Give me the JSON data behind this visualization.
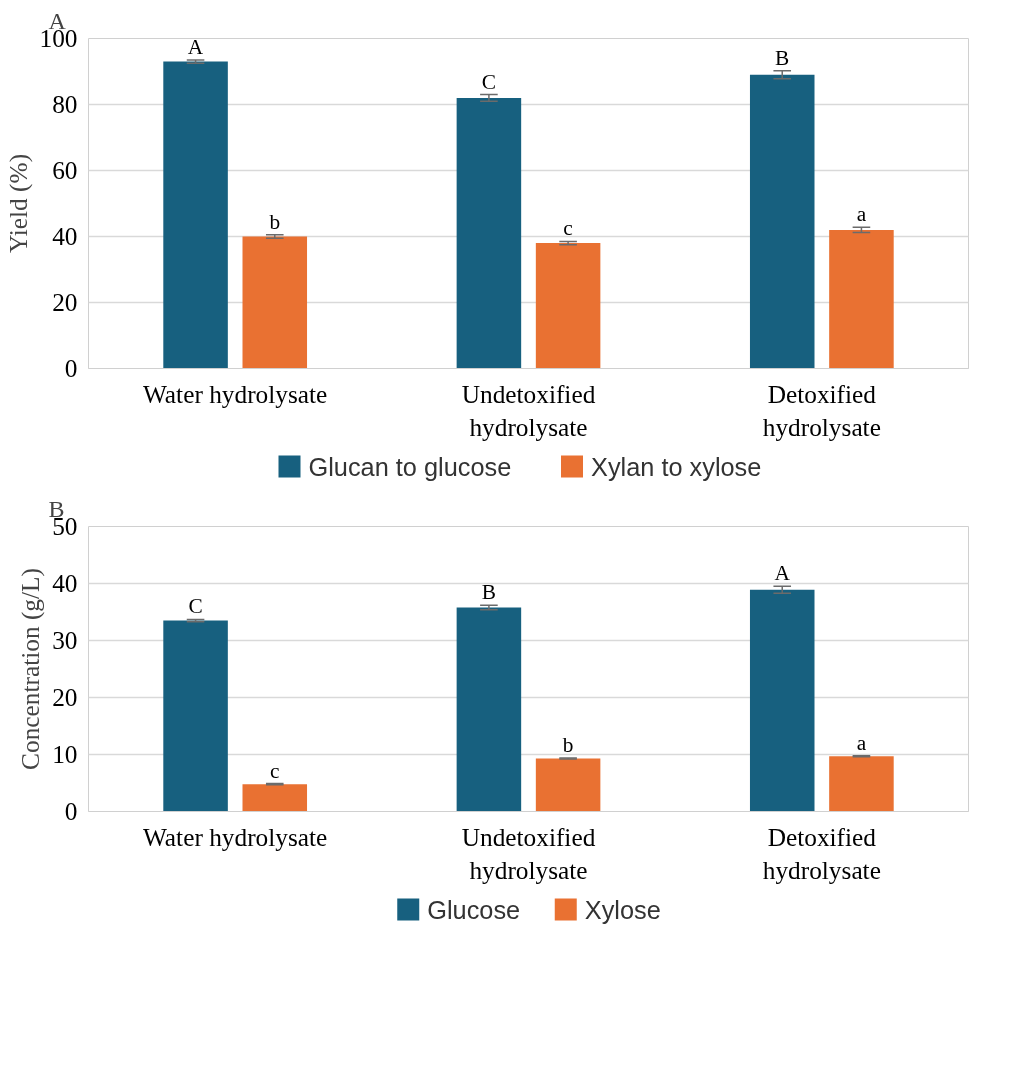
{
  "chart_data": [
    {
      "type": "bar",
      "categories": [
        "Water hydrolysate",
        "Undetoxified hydrolysate",
        "Detoxified hydrolysate"
      ],
      "ylabel": "Yield (%)",
      "ylim": [
        0,
        100
      ],
      "yticks": [
        0,
        20,
        40,
        60,
        80,
        100
      ],
      "grid": "y",
      "legend": "bottom",
      "series": [
        {
          "name": "Glucan to glucose",
          "color": "#17607f",
          "values": [
            93,
            82,
            89
          ],
          "errors": [
            0.5,
            1,
            1.2
          ]
        },
        {
          "name": "Xylan to xylose",
          "color": "#e97132",
          "values": [
            40,
            38,
            42
          ],
          "errors": [
            0.5,
            0.5,
            0.8
          ]
        }
      ],
      "annotations": [
        "A",
        "A",
        "C",
        "B",
        "b",
        "c",
        "a"
      ]
    },
    {
      "type": "bar",
      "categories": [
        "Water hydrolysate",
        "Undetoxified hydrolysate",
        "Detoxified hydrolysate"
      ],
      "ylabel": "Concentration (g/L)",
      "ylim": [
        0,
        50
      ],
      "yticks": [
        0,
        10,
        20,
        30,
        40,
        50
      ],
      "grid": "y",
      "legend": "bottom",
      "series": [
        {
          "name": "Glucose",
          "color": "#17607f",
          "values": [
            33.5,
            35.8,
            38.9
          ],
          "errors": [
            0.2,
            0.4,
            0.6
          ]
        },
        {
          "name": "Xylose",
          "color": "#e97132",
          "values": [
            4.8,
            9.3,
            9.7
          ],
          "errors": [
            0.1,
            0.1,
            0.1
          ]
        }
      ],
      "annotations": [
        "B",
        "C",
        "B",
        "A",
        "c",
        "b",
        "a"
      ]
    }
  ]
}
